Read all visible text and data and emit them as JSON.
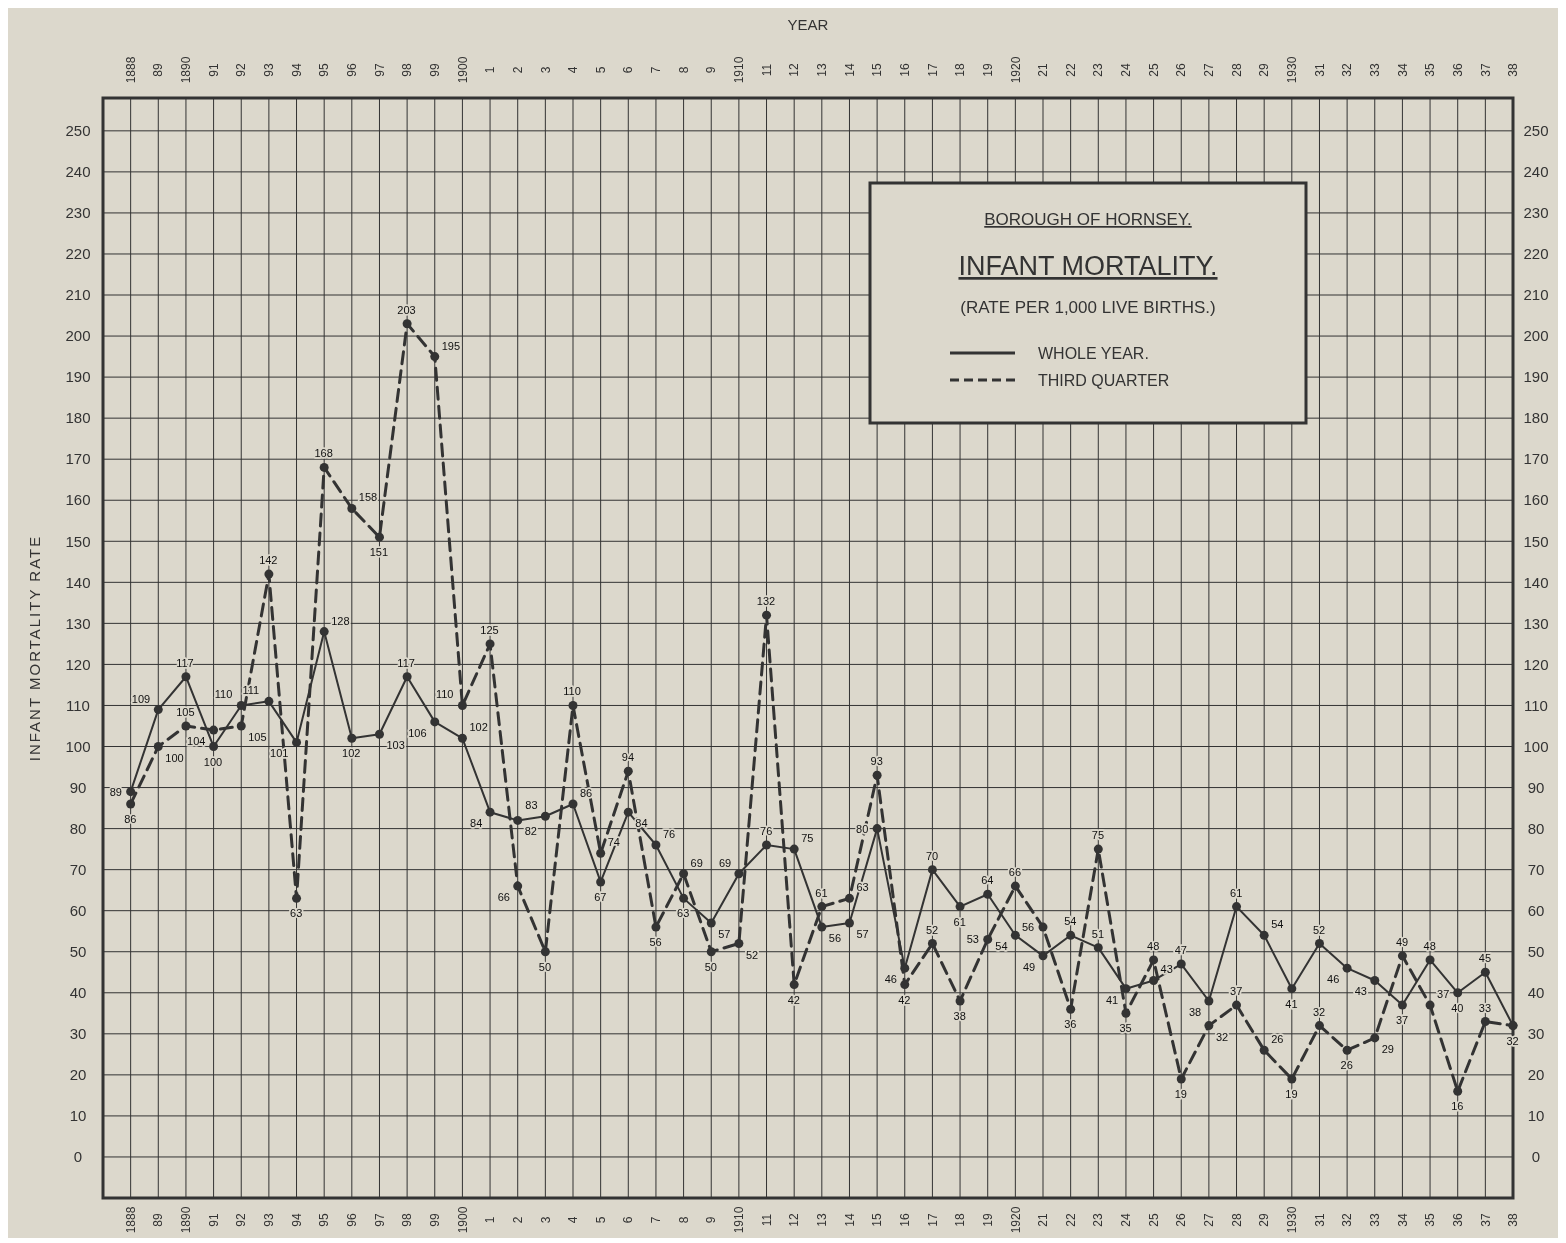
{
  "chart_data": {
    "type": "line",
    "title": "INFANT MORTALITY.",
    "subtitle": "BOROUGH OF HORNSEY.",
    "annotations": [
      "(RATE PER 1,000 LIVE BIRTHS.)"
    ],
    "xlabel": "YEAR",
    "ylabel": "INFANT MORTALITY RATE",
    "categories": [
      "1888",
      "89",
      "1890",
      "91",
      "92",
      "93",
      "94",
      "95",
      "96",
      "97",
      "98",
      "99",
      "1900",
      "1",
      "2",
      "3",
      "4",
      "5",
      "6",
      "7",
      "8",
      "9",
      "1910",
      "11",
      "12",
      "13",
      "14",
      "15",
      "16",
      "17",
      "18",
      "19",
      "1920",
      "21",
      "22",
      "23",
      "24",
      "25",
      "26",
      "27",
      "28",
      "29",
      "1930",
      "31",
      "32",
      "33",
      "34",
      "35",
      "36",
      "37",
      "38"
    ],
    "series": [
      {
        "name": "WHOLE YEAR.",
        "color": "#333333",
        "line_style": "solid",
        "values": [
          89,
          109,
          117,
          100,
          110,
          111,
          101,
          128,
          102,
          103,
          117,
          106,
          102,
          84,
          82,
          83,
          86,
          67,
          84,
          76,
          63,
          57,
          69,
          76,
          75,
          56,
          57,
          80,
          46,
          70,
          61,
          64,
          54,
          49,
          54,
          51,
          41,
          43,
          47,
          38,
          61,
          54,
          41,
          52,
          46,
          43,
          37,
          48,
          40,
          45,
          32
        ],
        "value_labels": [
          "89",
          "109",
          "117",
          "100",
          "110",
          "111",
          "101",
          "128",
          "102",
          "103",
          "117",
          "106",
          "102",
          "84",
          "82",
          "83",
          "86",
          "67",
          "84",
          "76",
          "63",
          "57",
          "69",
          "76",
          "75",
          "56",
          "57",
          "80",
          "46",
          "70",
          "61",
          "64",
          "54",
          "49",
          "54",
          "51",
          "41",
          "43",
          "47",
          "38",
          "61",
          "54",
          "41",
          "52",
          "46",
          "43",
          "37",
          "48",
          "40",
          "45",
          null
        ]
      },
      {
        "name": "THIRD QUARTER",
        "color": "#333333",
        "line_style": "dashed",
        "values": [
          86,
          100,
          105,
          104,
          105,
          142,
          63,
          168,
          158,
          151,
          203,
          195,
          110,
          125,
          66,
          50,
          110,
          74,
          94,
          56,
          69,
          50,
          52,
          132,
          42,
          61,
          63,
          93,
          42,
          52,
          38,
          53,
          66,
          56,
          36,
          75,
          35,
          48,
          19,
          32,
          37,
          26,
          19,
          32,
          26,
          29,
          49,
          37,
          16,
          33,
          32
        ],
        "value_labels": [
          "86",
          "100",
          "105",
          "104",
          "105",
          "142",
          "63",
          "168",
          "158",
          "151",
          "203",
          "195",
          "110",
          "125",
          "66",
          "50",
          "110",
          "74",
          "94",
          "56",
          "69",
          "50",
          "52",
          "132",
          "42",
          "61",
          "63",
          "93",
          "42",
          "52",
          "38",
          "53",
          "66",
          "56",
          "36",
          "75",
          "35",
          "48",
          "19",
          "32",
          "37",
          "26",
          "19",
          "32",
          "26",
          "29",
          "49",
          "37",
          "16",
          "33",
          "32"
        ]
      }
    ],
    "ylim": [
      -10,
      258
    ],
    "yticks": [
      0,
      10,
      20,
      30,
      40,
      50,
      60,
      70,
      80,
      90,
      100,
      110,
      120,
      130,
      140,
      150,
      160,
      170,
      180,
      190,
      200,
      210,
      220,
      230,
      240,
      250
    ],
    "y2lim": [
      -10,
      258
    ],
    "y2ticks": [
      0,
      10,
      20,
      30,
      40,
      50,
      60,
      70,
      80,
      90,
      100,
      110,
      120,
      130,
      140,
      150,
      160,
      170,
      180,
      190,
      200,
      210,
      220,
      230,
      240,
      250
    ],
    "grid": true,
    "legend": "top right",
    "marker": "circle"
  }
}
